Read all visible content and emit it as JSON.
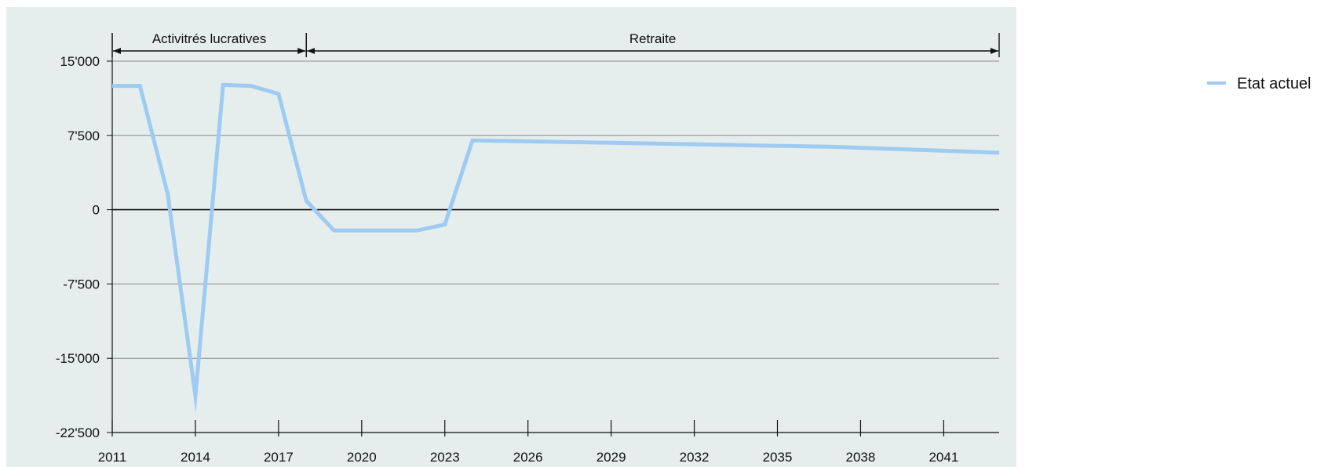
{
  "chart_data": {
    "type": "line",
    "title": "",
    "xlabel": "",
    "ylabel": "",
    "xlim": [
      2011,
      2043
    ],
    "ylim": [
      -22500,
      15000
    ],
    "x_ticks": [
      2011,
      2014,
      2017,
      2020,
      2023,
      2026,
      2029,
      2032,
      2035,
      2038,
      2041
    ],
    "x_tick_labels": [
      "2011",
      "2014",
      "2017",
      "2020",
      "2023",
      "2026",
      "2029",
      "2032",
      "2035",
      "2038",
      "2041"
    ],
    "y_ticks": [
      15000,
      7500,
      0,
      -7500,
      -15000,
      -22500
    ],
    "y_tick_labels": [
      "15'000",
      "7'500",
      "0",
      "-7'500",
      "-15'000",
      "-22'500"
    ],
    "grid": true,
    "legend_position": "top-right",
    "phases": [
      {
        "label": "Activitrés lucratives",
        "from": 2011,
        "to": 2018
      },
      {
        "label": "Retraite",
        "from": 2018,
        "to": 2043
      }
    ],
    "x": [
      2011,
      2012,
      2013,
      2014,
      2015,
      2016,
      2017,
      2018,
      2019,
      2020,
      2021,
      2022,
      2023,
      2024,
      2025,
      2026,
      2027,
      2028,
      2029,
      2030,
      2031,
      2032,
      2033,
      2034,
      2035,
      2036,
      2037,
      2038,
      2039,
      2040,
      2041,
      2042,
      2043
    ],
    "series": [
      {
        "name": "Etat actuel",
        "color": "#9ecbf1",
        "values": [
          12500,
          12500,
          1600,
          -18800,
          12600,
          12500,
          11700,
          900,
          -2100,
          -2100,
          -2100,
          -2100,
          -1500,
          7000,
          6950,
          6900,
          6850,
          6800,
          6750,
          6700,
          6650,
          6600,
          6550,
          6500,
          6450,
          6400,
          6350,
          6250,
          6150,
          6050,
          5950,
          5850,
          5750
        ]
      }
    ]
  }
}
